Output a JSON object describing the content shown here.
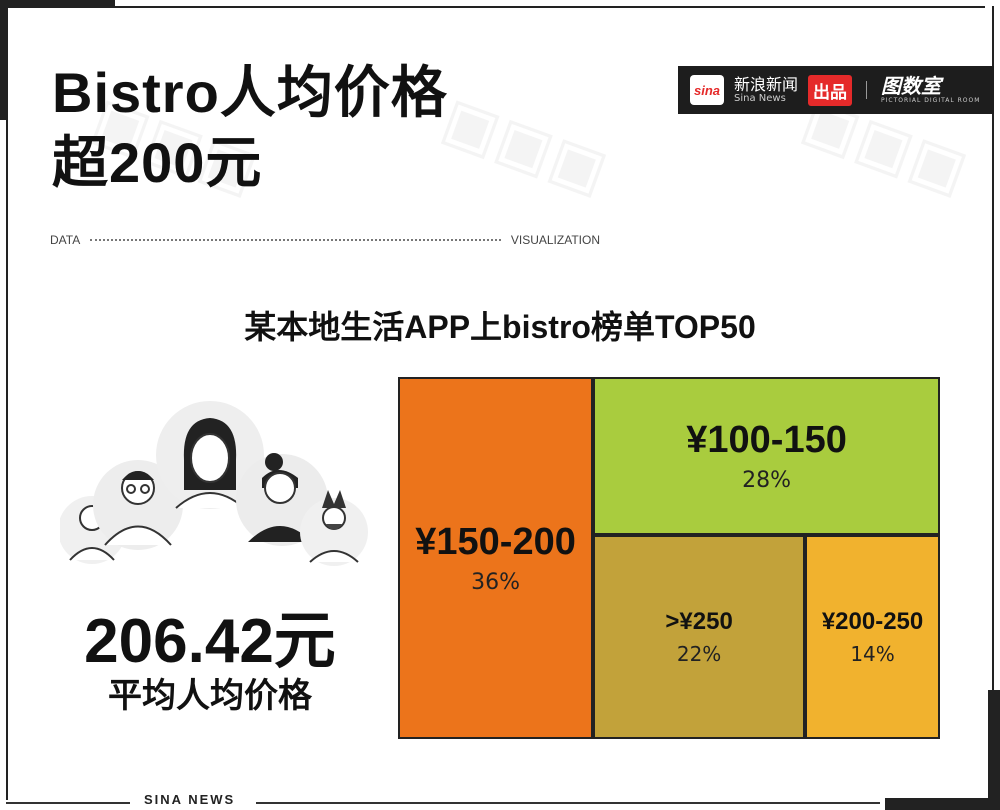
{
  "header": {
    "title_line1": "Bistro人均价格",
    "title_line2": "超200元"
  },
  "brand": {
    "sina_logo": "sina",
    "name_cn": "新浪新闻",
    "name_en": "Sina News",
    "badge": "出品",
    "separator": "|",
    "tushi_cn": "图数室",
    "tushi_en": "PICTORIAL DIGITAL ROOM"
  },
  "dv": {
    "left": "DATA",
    "right": "VISUALIZATION"
  },
  "stat": {
    "value": "206.42元",
    "label": "平均人均价格"
  },
  "footer": {
    "text": "SINA NEWS"
  },
  "colors": {
    "orange": "#ec741b",
    "green": "#a9cc3e",
    "olive": "#c2a23a",
    "yellow": "#f1b22e"
  },
  "chart_data": {
    "type": "treemap",
    "title": "某本地生活APP上bistro榜单TOP50",
    "items": [
      {
        "label": "¥150-200",
        "value": 36,
        "pct_label": "36%",
        "color": "#ec741b"
      },
      {
        "label": "¥100-150",
        "value": 28,
        "pct_label": "28%",
        "color": "#a9cc3e"
      },
      {
        "label": ">¥250",
        "value": 22,
        "pct_label": "22%",
        "color": "#c2a23a"
      },
      {
        "label": "¥200-250",
        "value": 14,
        "pct_label": "14%",
        "color": "#f1b22e"
      }
    ]
  }
}
